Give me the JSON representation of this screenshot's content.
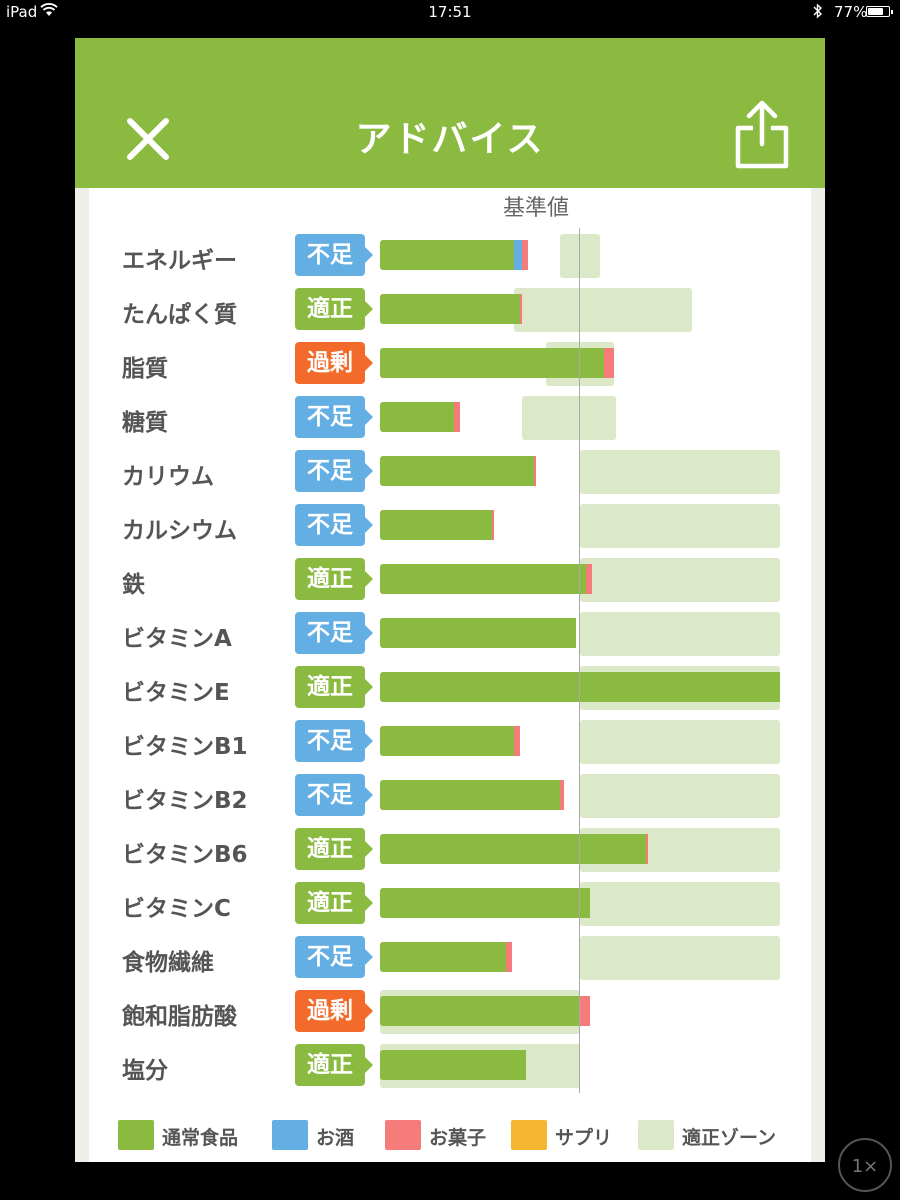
{
  "status_bar": {
    "carrier": "iPad",
    "time": "17:51",
    "battery": "77%",
    "battery_level": 0.77
  },
  "header": {
    "title": "アドバイス",
    "close_icon": "close-icon",
    "share_icon": "share-icon"
  },
  "chart": {
    "reference_label": "基準値"
  },
  "badge_colors": {
    "不足": "#63aee2",
    "適正": "#8bba40",
    "過剰": "#f26b2b"
  },
  "legend": [
    {
      "label": "通常食品",
      "color": "#8bba40"
    },
    {
      "label": "お酒",
      "color": "#63aee2"
    },
    {
      "label": "お菓子",
      "color": "#f57c7a"
    },
    {
      "label": "サプリ",
      "color": "#f7b631"
    },
    {
      "label": "適正ゾーン",
      "color": "#dce9c8"
    }
  ],
  "chart_data": {
    "type": "bar",
    "stacked": true,
    "reference": 100,
    "note_units": "percent of reference value",
    "categories": [
      "エネルギー",
      "たんぱく質",
      "脂質",
      "糖質",
      "カリウム",
      "カルシウム",
      "鉄",
      "ビタミンA",
      "ビタミンE",
      "ビタミンB1",
      "ビタミンB2",
      "ビタミンB6",
      "ビタミンC",
      "食物繊維",
      "飽和脂肪酸",
      "塩分"
    ],
    "status": [
      "不足",
      "適正",
      "過剰",
      "不足",
      "不足",
      "不足",
      "適正",
      "不足",
      "適正",
      "不足",
      "不足",
      "適正",
      "適正",
      "不足",
      "過剰",
      "適正"
    ],
    "series": [
      {
        "name": "通常食品",
        "values": [
          67,
          70,
          112,
          37,
          77,
          56,
          103,
          98,
          200,
          67,
          90,
          133,
          105,
          63,
          100,
          73
        ]
      },
      {
        "name": "お酒",
        "values": [
          4,
          0,
          0,
          0,
          0,
          0,
          0,
          0,
          0,
          0,
          0,
          0,
          0,
          0,
          0,
          0
        ]
      },
      {
        "name": "お菓子",
        "values": [
          3,
          1,
          5,
          3,
          1,
          1,
          3,
          0,
          0,
          3,
          2,
          1,
          0,
          3,
          5,
          0
        ]
      },
      {
        "name": "サプリ",
        "values": [
          0,
          0,
          0,
          0,
          0,
          0,
          0,
          0,
          0,
          0,
          0,
          0,
          0,
          0,
          0,
          0
        ]
      }
    ],
    "zones": [
      [
        90,
        110
      ],
      [
        67,
        156
      ],
      [
        83,
        117
      ],
      [
        71,
        118
      ],
      [
        100,
        200
      ],
      [
        100,
        200
      ],
      [
        100,
        200
      ],
      [
        100,
        200
      ],
      [
        100,
        200
      ],
      [
        100,
        200
      ],
      [
        100,
        200
      ],
      [
        100,
        200
      ],
      [
        100,
        200
      ],
      [
        100,
        200
      ],
      [
        0,
        100
      ],
      [
        0,
        100
      ]
    ],
    "xlim": [
      0,
      200
    ]
  }
}
